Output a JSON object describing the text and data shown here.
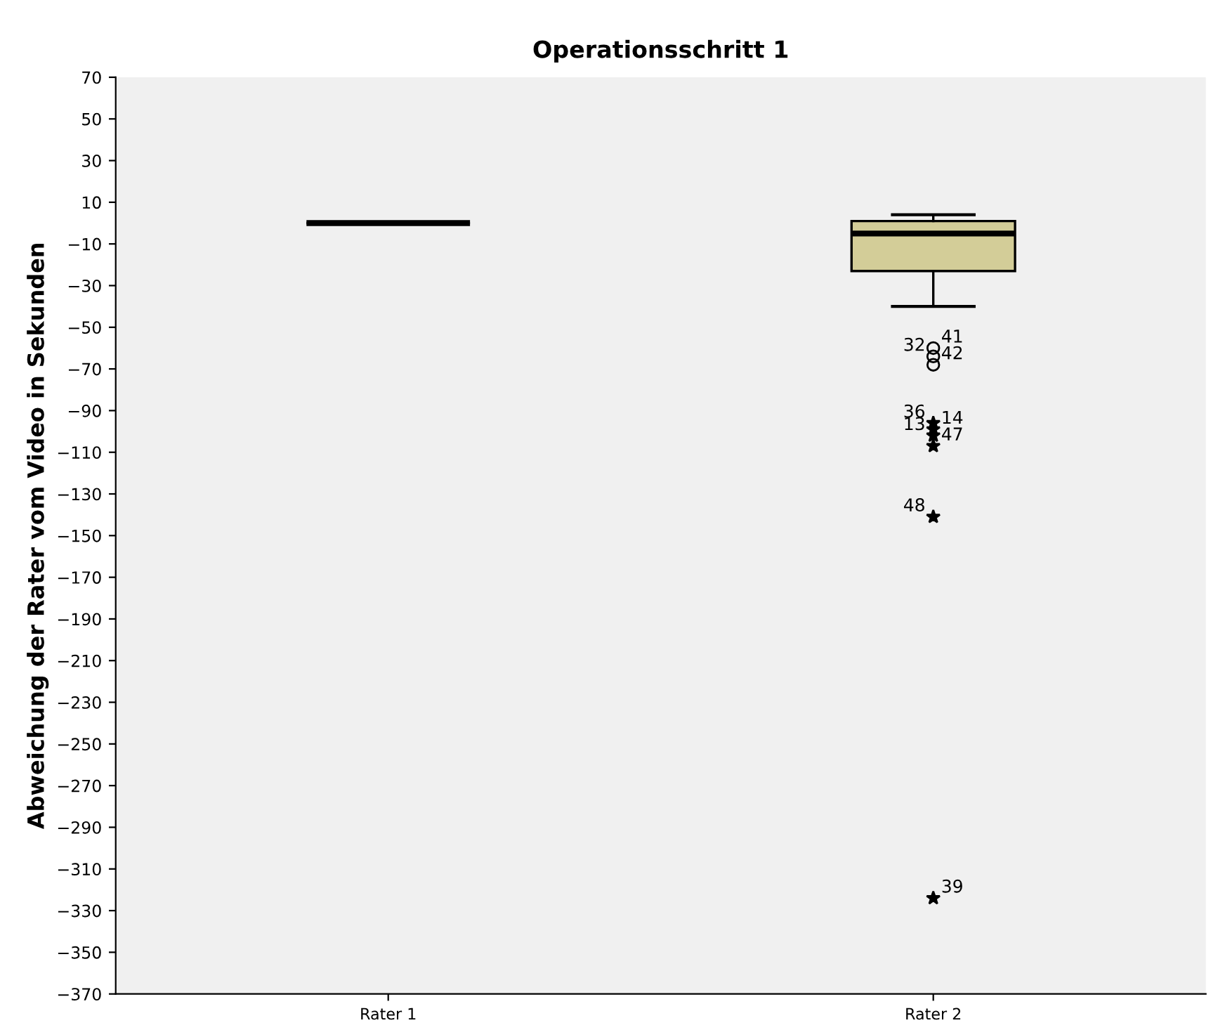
{
  "chart_data": {
    "type": "box",
    "title": "Operationsschritt 1",
    "ylabel": "Abweichung der Rater vom Video in Sekunden",
    "categories": [
      "Rater 1",
      "Rater 2"
    ],
    "boxes": [
      {
        "low": 0,
        "q1": 0,
        "median": 0,
        "q3": 0,
        "high": 0
      },
      {
        "low": -40,
        "q1": -23,
        "median": -5,
        "q3": 1,
        "high": 4,
        "outliers": [
          -60,
          -64,
          -68,
          -96,
          -99,
          -102,
          -107,
          -141,
          -324
        ]
      }
    ],
    "colors": [
      "#000000",
      "#d3cd98"
    ],
    "ylim": [
      -370,
      70
    ],
    "yticks": [
      70,
      50,
      30,
      10,
      -10,
      -30,
      -50,
      -70,
      -90,
      -110,
      -130,
      -150,
      -170,
      -190,
      -210,
      -230,
      -250,
      -270,
      -290,
      -310,
      -330,
      -350,
      -370
    ],
    "grid": false,
    "annotations": [
      "41",
      "32",
      "42",
      "36",
      "14",
      "13",
      "47",
      "48",
      "39"
    ]
  }
}
